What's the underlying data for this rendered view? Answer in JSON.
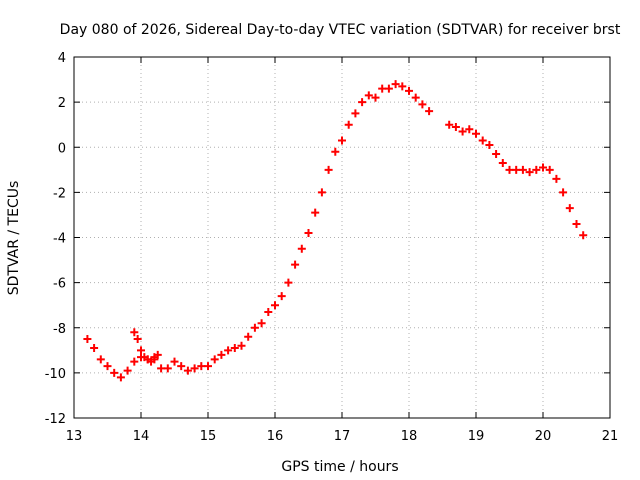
{
  "chart_data": {
    "type": "scatter",
    "title": "Day 080 of 2026, Sidereal Day-to-day VTEC variation (SDTVAR) for receiver brst",
    "xlabel": "GPS time / hours",
    "ylabel": "SDTVAR / TECUs",
    "xlim": [
      13,
      21
    ],
    "ylim": [
      -12,
      4
    ],
    "xticks": [
      13,
      14,
      15,
      16,
      17,
      18,
      19,
      20,
      21
    ],
    "yticks": [
      -12,
      -10,
      -8,
      -6,
      -4,
      -2,
      0,
      2,
      4
    ],
    "grid": true,
    "marker": "+",
    "color": "#ff0000",
    "series": [
      {
        "name": "segment-1",
        "x": [
          13.2,
          13.3,
          13.4,
          13.5,
          13.6,
          13.7,
          13.8,
          13.9,
          14.0,
          14.1,
          14.2,
          14.3,
          14.4,
          14.5,
          14.6,
          14.7,
          14.8,
          14.9,
          15.0,
          15.1,
          15.2,
          15.3,
          15.4,
          15.5,
          15.6,
          15.7,
          15.8,
          15.9,
          16.0,
          16.1,
          16.2,
          16.3,
          16.4,
          16.5,
          16.6,
          16.7,
          16.8,
          16.9,
          17.0,
          17.1,
          17.2,
          17.3,
          17.4,
          17.5,
          17.6,
          17.7,
          17.8,
          17.9,
          18.0,
          18.1,
          18.2,
          18.3
        ],
        "y": [
          -8.5,
          -8.9,
          -9.4,
          -9.7,
          -10.0,
          -10.2,
          -9.9,
          -9.5,
          -9.3,
          -9.4,
          -9.3,
          -9.8,
          -9.8,
          -9.5,
          -9.7,
          -9.9,
          -9.8,
          -9.7,
          -9.7,
          -9.4,
          -9.2,
          -9.0,
          -8.9,
          -8.8,
          -8.4,
          -8.0,
          -7.8,
          -7.3,
          -7.0,
          -6.6,
          -6.0,
          -5.2,
          -4.5,
          -3.8,
          -2.9,
          -2.0,
          -1.0,
          -0.2,
          0.3,
          1.0,
          1.5,
          2.0,
          2.3,
          2.2,
          2.6,
          2.6,
          2.8,
          2.7,
          2.5,
          2.2,
          1.9,
          1.6
        ]
      },
      {
        "name": "segment-2",
        "x": [
          13.9,
          13.95,
          14.0,
          14.05,
          14.1,
          14.15,
          14.2,
          14.25
        ],
        "y": [
          -8.2,
          -8.5,
          -9.0,
          -9.3,
          -9.4,
          -9.5,
          -9.4,
          -9.2
        ]
      },
      {
        "name": "segment-3",
        "x": [
          18.6,
          18.7,
          18.8,
          18.9,
          19.0,
          19.1,
          19.2,
          19.3,
          19.4,
          19.5,
          19.6,
          19.7,
          19.8,
          19.9,
          20.0,
          20.1,
          20.2,
          20.3,
          20.4,
          20.5,
          20.6
        ],
        "y": [
          1.0,
          0.9,
          0.7,
          0.8,
          0.6,
          0.3,
          0.1,
          -0.3,
          -0.7,
          -1.0,
          -1.0,
          -1.0,
          -1.1,
          -1.0,
          -0.9,
          -1.0,
          -1.4,
          -2.0,
          -2.7,
          -3.4,
          -3.9
        ]
      }
    ]
  }
}
